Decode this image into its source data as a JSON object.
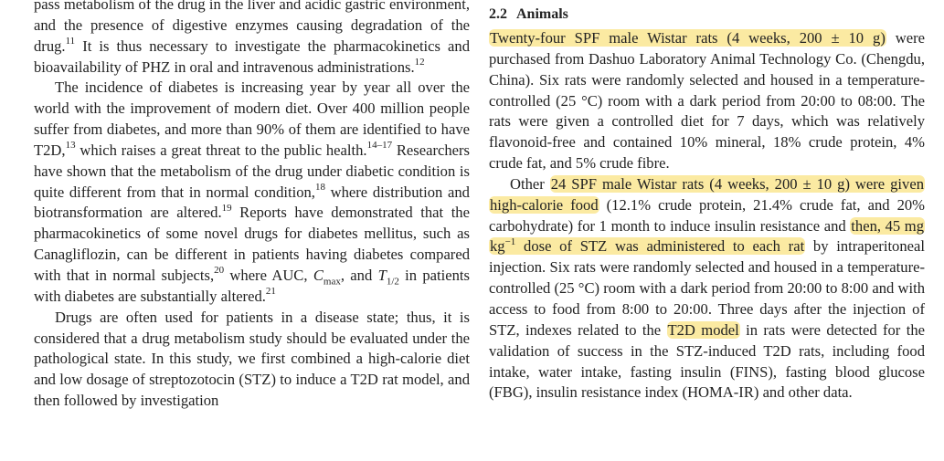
{
  "left_column": {
    "p1": {
      "s1": "pass metabolism of the drug in the liver and acidic gastric environment, and the presence of digestive enzymes causing degradation of the drug.",
      "ref1": "11",
      "s2": " It is thus necessary to investigate the pharmacokinetics and bioavailability of PHZ in oral and intravenous administrations.",
      "ref2": "12"
    },
    "p2": {
      "s1": "The incidence of diabetes is increasing year by year all over the world with the improvement of modern diet. Over 400 million people suffer from diabetes, and more than 90% of them are identified to have T2D,",
      "ref1": "13",
      "s2": " which raises a great threat to the public health.",
      "ref2": "14–17",
      "s3": " Researchers have shown that the metabolism of the drug under diabetic condition is quite different from that in normal condition,",
      "ref3": "18",
      "s4": " where distribution and biotransformation are altered.",
      "ref4": "19",
      "s5": " Reports have demonstrated that the pharmacokinetics of some novel drugs for diabetes mellitus, such as Canagliflozin, can be different in patients having diabetes compared with that in normal subjects,",
      "ref5": "20",
      "s6": " where AUC, ",
      "cmax_c": "C",
      "cmax_sub": "max",
      "s7": ", and ",
      "t_t": "T",
      "t_sub": "1/2",
      "s8": " in patients with diabetes are substantially altered.",
      "ref6": "21"
    },
    "p3": {
      "text": "Drugs are often used for patients in a disease state; thus, it is considered that a drug metabolism study should be evaluated under the pathological state. In this study, we first combined a high-calorie diet and low dosage of streptozotocin (STZ) to induce a T2D rat model, and then followed by investigation"
    }
  },
  "right_column": {
    "section_number": "2.2",
    "section_title": "Animals",
    "p1": {
      "hl1": "Twenty-four SPF male Wistar rats (4 weeks, 200 ± 10 g)",
      "s1": " were purchased from Dashuo Laboratory Animal Technology Co. (Chengdu, China). Six rats were randomly selected and housed in a temperature-controlled (25 °C) room with a dark period from 20:00 to 08:00. The rats were given a controlled diet for 7 days, which was relatively flavonoid-free and contained 10% mineral, 18% crude protein, 4% crude fat, and 5% crude fibre."
    },
    "p2": {
      "s1": "Other ",
      "hl1": "24 SPF male Wistar rats (4 weeks, 200 ± 10 g) were given high-calorie food",
      "s2": " (12.1% crude protein, 21.4% crude fat, and 20% carbohydrate) for 1 month to induce insulin resistance and ",
      "hl2a": "then, 45 mg kg",
      "hl2sup": "−1",
      "hl2b": " dose of STZ was administered to each rat",
      "s3": " by intraperitoneal injection. Six rats were randomly selected and housed in a temperature-controlled (25 °C) room with a dark period from 20:00 to 8:00 and with access to food from 8:00 to 20:00. Three days after the injection of STZ, indexes related to the ",
      "hl3": "T2D model",
      "s4": " in rats were detected for the validation of success in the STZ-induced T2D rats, including food intake, water intake, fasting insulin (FINS), fasting blood glucose (FBG), insulin resistance index (HOMA-IR) and other data."
    }
  },
  "colors": {
    "highlight": "#fbeaa2",
    "text": "#222222",
    "background": "#ffffff"
  }
}
